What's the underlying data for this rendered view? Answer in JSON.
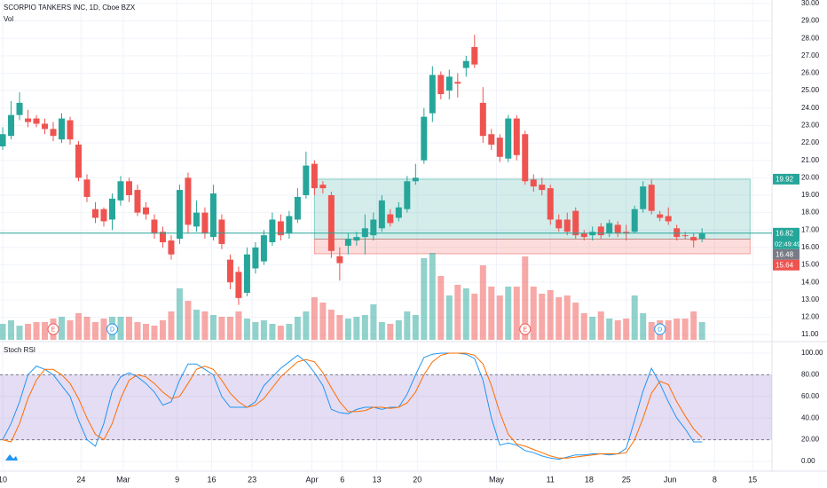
{
  "chart_data": [
    {
      "type": "candlestick",
      "title": "SCORPIO TANKERS INC, 1D, Cboe BZX",
      "volume_label": "Vol",
      "up_color": "#26a69a",
      "down_color": "#ef5350",
      "open": [
        21.8,
        22.4,
        23.6,
        23.4,
        23.4,
        23.1,
        22.8,
        22.2,
        23.3,
        21.9,
        19.9,
        18.2,
        18.2,
        17.6,
        18.7,
        19.8,
        19.3,
        18.3,
        17.6,
        16.9,
        16.4,
        16.5,
        20.0,
        17.2,
        18.0,
        16.6,
        17.6,
        15.3,
        14.6,
        13.4,
        14.8,
        15.2,
        16.3,
        17.5,
        16.8,
        17.6,
        19.0,
        20.8,
        19.6,
        19.0,
        15.5,
        16.1,
        16.4,
        16.6,
        16.7,
        17.1,
        17.9,
        17.7,
        18.2,
        19.8,
        21.0,
        23.7,
        25.9,
        25.0,
        25.5,
        26.3,
        27.5,
        24.3,
        22.5,
        22.3,
        21.1,
        23.4,
        22.5,
        19.9,
        19.6,
        19.4,
        17.6,
        17.6,
        18.1,
        16.8,
        16.7,
        17.2,
        16.8,
        17.3,
        16.9,
        16.9,
        18.2,
        19.6,
        17.9,
        17.8,
        17.1,
        16.7,
        16.6,
        16.5
      ],
      "high": [
        22.9,
        24.4,
        24.9,
        23.9,
        23.6,
        23.4,
        23.2,
        23.7,
        23.5,
        22.1,
        20.2,
        18.6,
        18.3,
        19.1,
        20.1,
        20.0,
        19.6,
        18.6,
        17.9,
        17.2,
        16.7,
        19.6,
        20.3,
        18.7,
        18.3,
        19.6,
        17.9,
        15.6,
        14.9,
        16.0,
        16.3,
        17.0,
        18.0,
        17.9,
        18.1,
        19.4,
        21.5,
        21.0,
        19.8,
        19.2,
        16.0,
        16.8,
        16.9,
        17.9,
        18.0,
        19.0,
        18.2,
        18.6,
        20.1,
        20.8,
        24.0,
        26.4,
        26.1,
        26.2,
        26.0,
        27.0,
        28.2,
        25.2,
        22.8,
        22.5,
        23.6,
        23.6,
        22.7,
        20.2,
        20.0,
        19.6,
        17.9,
        18.0,
        18.3,
        17.0,
        17.2,
        17.4,
        17.6,
        17.5,
        17.3,
        18.4,
        19.8,
        19.9,
        18.1,
        18.3,
        17.3,
        16.9,
        16.8,
        17.1
      ],
      "low": [
        21.6,
        22.2,
        23.3,
        22.9,
        22.9,
        22.5,
        22.1,
        22.0,
        21.9,
        19.8,
        18.6,
        17.4,
        17.2,
        17.0,
        18.4,
        18.6,
        17.8,
        17.6,
        16.5,
        16.0,
        15.3,
        16.2,
        16.8,
        16.9,
        16.5,
        16.4,
        15.9,
        13.6,
        12.7,
        13.2,
        14.5,
        15.0,
        16.1,
        16.4,
        16.5,
        17.4,
        18.8,
        19.0,
        19.1,
        15.4,
        14.1,
        15.6,
        16.1,
        15.6,
        16.4,
        16.9,
        17.2,
        17.5,
        18.0,
        19.6,
        20.8,
        23.2,
        24.5,
        24.5,
        24.6,
        25.8,
        26.3,
        22.0,
        21.6,
        20.9,
        20.9,
        21.0,
        19.6,
        19.2,
        19.0,
        17.3,
        16.9,
        16.7,
        16.5,
        16.4,
        16.4,
        16.5,
        16.6,
        16.6,
        16.4,
        16.8,
        18.0,
        17.9,
        17.5,
        17.3,
        16.4,
        16.5,
        16.0,
        16.3
      ],
      "close": [
        22.5,
        23.6,
        24.3,
        23.2,
        23.1,
        22.8,
        22.4,
        23.4,
        22.2,
        20.0,
        18.9,
        17.7,
        17.5,
        18.8,
        19.8,
        19.0,
        18.0,
        17.9,
        16.8,
        16.3,
        15.6,
        19.3,
        17.3,
        18.0,
        16.8,
        19.1,
        16.2,
        14.0,
        13.1,
        15.6,
        16.0,
        16.7,
        17.6,
        16.7,
        17.8,
        18.9,
        20.7,
        19.4,
        19.4,
        15.8,
        15.1,
        16.5,
        16.6,
        17.1,
        17.6,
        18.7,
        17.4,
        18.3,
        19.8,
        20.0,
        23.5,
        25.9,
        24.8,
        25.8,
        25.4,
        26.7,
        26.5,
        22.4,
        21.9,
        21.2,
        23.4,
        21.3,
        19.8,
        19.5,
        19.3,
        17.6,
        17.1,
        16.9,
        16.7,
        16.6,
        16.9,
        16.7,
        17.4,
        16.8,
        16.8,
        18.2,
        19.5,
        18.1,
        17.7,
        17.5,
        16.6,
        16.68,
        16.4,
        16.8
      ],
      "volume": [
        0.9,
        1.1,
        0.8,
        0.9,
        1.0,
        1.0,
        1.2,
        1.3,
        1.1,
        1.5,
        1.3,
        1.0,
        1.2,
        1.3,
        1.3,
        1.3,
        1.0,
        0.9,
        0.8,
        1.1,
        1.6,
        2.9,
        2.2,
        1.7,
        1.6,
        1.4,
        1.3,
        1.3,
        1.6,
        1.2,
        1.0,
        1.1,
        0.9,
        0.8,
        0.9,
        1.3,
        1.6,
        2.4,
        2.1,
        1.7,
        1.4,
        1.2,
        1.3,
        1.4,
        2.0,
        1.0,
        0.9,
        1.1,
        1.6,
        1.4,
        4.6,
        4.9,
        3.6,
        2.5,
        3.1,
        2.9,
        2.6,
        4.2,
        3.0,
        2.5,
        3.0,
        3.0,
        4.7,
        3.0,
        2.6,
        2.8,
        2.4,
        2.5,
        2.1,
        1.5,
        1.3,
        1.6,
        1.2,
        1.1,
        1.2,
        2.5,
        1.5,
        1.0,
        1.1,
        1.1,
        1.2,
        1.2,
        1.6,
        1.0
      ],
      "xlim": [
        -0.32,
        91.3
      ],
      "xticks": [
        {
          "value": 0,
          "label": "10"
        },
        {
          "value": 9.3,
          "label": "24"
        },
        {
          "value": 14.3,
          "label": "Mar"
        },
        {
          "value": 20.7,
          "label": "9"
        },
        {
          "value": 24.8,
          "label": "16"
        },
        {
          "value": 29.6,
          "label": "23"
        },
        {
          "value": 36.7,
          "label": "Apr"
        },
        {
          "value": 40.3,
          "label": "6"
        },
        {
          "value": 44.4,
          "label": "13"
        },
        {
          "value": 49.2,
          "label": "20"
        },
        {
          "value": 58.6,
          "label": "May"
        },
        {
          "value": 65,
          "label": "11"
        },
        {
          "value": 69.6,
          "label": "18"
        },
        {
          "value": 74,
          "label": "25"
        },
        {
          "value": 79.2,
          "label": "Jun"
        },
        {
          "value": 84.5,
          "label": "8"
        },
        {
          "value": 89,
          "label": "15"
        }
      ],
      "ylim": [
        10.7,
        30.2
      ],
      "yticks": [
        {
          "value": 11,
          "label": "11.00"
        },
        {
          "value": 12,
          "label": "12.00"
        },
        {
          "value": 13,
          "label": "13.00"
        },
        {
          "value": 14,
          "label": "14.00"
        },
        {
          "value": 15,
          "label": "15.00"
        },
        {
          "value": 16,
          "label": "16.00"
        },
        {
          "value": 17,
          "label": "17.00"
        },
        {
          "value": 18,
          "label": "18.00"
        },
        {
          "value": 19,
          "label": "19.00"
        },
        {
          "value": 20,
          "label": "20.00"
        },
        {
          "value": 21,
          "label": "21.00"
        },
        {
          "value": 22,
          "label": "22.00"
        },
        {
          "value": 23,
          "label": "23.00"
        },
        {
          "value": 24,
          "label": "24.00"
        },
        {
          "value": 25,
          "label": "25.00"
        },
        {
          "value": 26,
          "label": "26.00"
        },
        {
          "value": 27,
          "label": "27.00"
        },
        {
          "value": 28,
          "label": "28.00"
        },
        {
          "value": 29,
          "label": "29.00"
        },
        {
          "value": 30,
          "label": "30.00"
        }
      ],
      "zones": [
        {
          "x": [
            37,
            88.7
          ],
          "y": [
            19.92,
            16.48
          ],
          "color": "#26a69a"
        },
        {
          "x": [
            37,
            88.7
          ],
          "y": [
            16.48,
            15.64
          ],
          "color": "#ef5350"
        }
      ],
      "last_price": {
        "value": 16.82,
        "label": "16.82",
        "countdown": "02:49:49",
        "color": "#26a69a"
      },
      "price_labels": [
        {
          "value": 19.92,
          "label": "19.92",
          "color": "#26a69a"
        },
        {
          "value": 16.48,
          "label": "16.48",
          "color": "#787b86"
        },
        {
          "value": 15.64,
          "label": "15.64",
          "color": "#ef5350"
        }
      ],
      "events": [
        {
          "x": 6,
          "label": "E",
          "color": "#ef5350"
        },
        {
          "x": 13,
          "label": "D",
          "color": "#2196f3"
        },
        {
          "x": 62,
          "label": "E",
          "color": "#ef5350"
        },
        {
          "x": 78,
          "label": "D",
          "color": "#2196f3"
        }
      ]
    },
    {
      "type": "line",
      "title": "Stoch RSI",
      "series": [
        {
          "color": "#2196f3",
          "values": [
            20,
            35,
            55,
            80,
            88,
            85,
            80,
            70,
            60,
            38,
            20,
            14,
            35,
            65,
            78,
            82,
            78,
            72,
            64,
            52,
            55,
            75,
            90,
            90,
            85,
            80,
            60,
            50,
            50,
            50,
            55,
            70,
            78,
            86,
            92,
            98,
            92,
            82,
            70,
            48,
            45,
            44,
            48,
            50,
            50,
            48,
            50,
            50,
            62,
            80,
            96,
            99,
            100,
            100,
            100,
            99,
            95,
            75,
            40,
            15,
            17,
            15,
            10,
            8,
            5,
            3,
            2,
            4,
            6,
            6,
            7,
            7,
            6,
            7,
            12,
            38,
            65,
            86,
            72,
            55,
            40,
            30,
            18,
            18
          ]
        },
        {
          "color": "#ff6d00",
          "values": [
            20,
            18,
            35,
            58,
            75,
            85,
            85,
            80,
            72,
            58,
            40,
            25,
            20,
            35,
            58,
            75,
            80,
            78,
            72,
            64,
            58,
            60,
            72,
            85,
            88,
            85,
            75,
            63,
            55,
            50,
            52,
            58,
            68,
            78,
            85,
            92,
            94,
            92,
            82,
            68,
            55,
            46,
            46,
            47,
            50,
            50,
            49,
            50,
            54,
            64,
            80,
            92,
            98,
            100,
            100,
            100,
            98,
            90,
            70,
            45,
            25,
            16,
            14,
            11,
            8,
            5,
            3,
            3,
            4,
            5,
            6,
            7,
            7,
            7,
            8,
            20,
            40,
            63,
            74,
            71,
            55,
            42,
            30,
            22
          ]
        }
      ],
      "band": [
        20,
        80
      ],
      "band_color": "#7e57c2",
      "ylim": [
        -8.2,
        108.2
      ],
      "yticks": [
        {
          "value": 0,
          "label": "0.00"
        },
        {
          "value": 20,
          "label": "20.00"
        },
        {
          "value": 40,
          "label": "40.00"
        },
        {
          "value": 60,
          "label": "60.00"
        },
        {
          "value": 80,
          "label": "80.00"
        },
        {
          "value": 100,
          "label": "100.00"
        }
      ]
    }
  ]
}
